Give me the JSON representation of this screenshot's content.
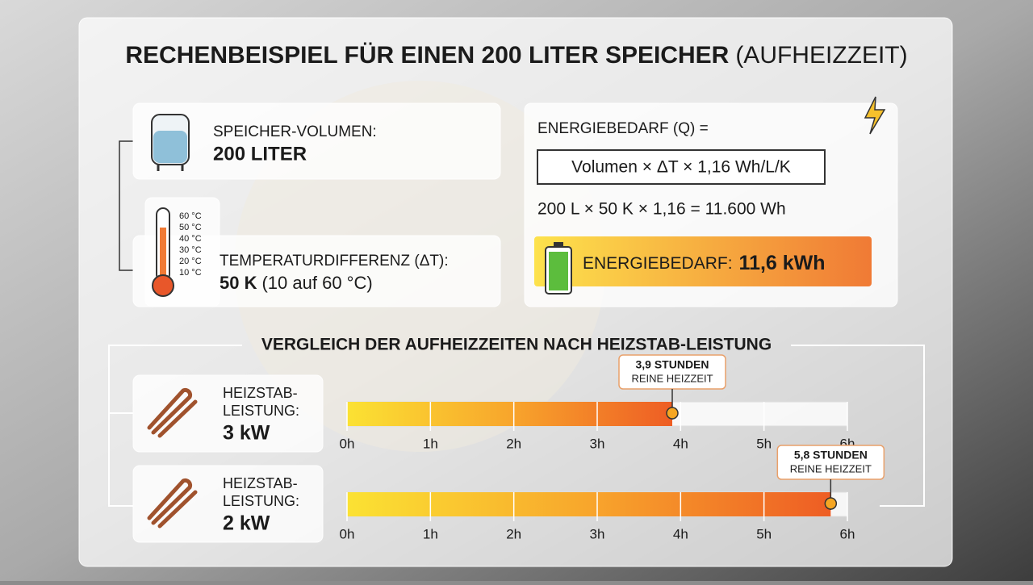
{
  "title_main": "RECHENBEISPIEL FÜR EINEN 200 LITER SPEICHER",
  "title_sub": "(AUFHEIZZEIT)",
  "volume": {
    "label": "SPEICHER-VOLUMEN:",
    "value": "200 LITER"
  },
  "thermometer_ticks": [
    "60 °C",
    "50 °C",
    "40 °C",
    "30 °C",
    "20 °C",
    "10 °C"
  ],
  "temperature": {
    "label": "TEMPERATURDIFFERENZ (ΔT):",
    "value": "50 K",
    "detail": "(10 auf 60 °C)"
  },
  "energy": {
    "heading": "ENERGIEBEDARF (Q) =",
    "formula": "Volumen × ΔT × 1,16 Wh/L/K",
    "calculation": "200 L × 50 K × 1,16 = 11.600 Wh",
    "result_label": "ENERGIEBEDARF:",
    "result_value": "11,6 kWh"
  },
  "comparison": {
    "title": "VERGLEICH DER AUFHEIZZEITEN NACH HEIZSTAB-LEISTUNG",
    "xlim": [
      0,
      6
    ],
    "xticks": [
      {
        "value": 0,
        "label": "0h"
      },
      {
        "value": 1,
        "label": "1h"
      },
      {
        "value": 2,
        "label": "2h"
      },
      {
        "value": 3,
        "label": "3h"
      },
      {
        "value": 4,
        "label": "4h"
      },
      {
        "value": 5,
        "label": "5h"
      },
      {
        "value": 6,
        "label": "6h"
      }
    ],
    "rows": [
      {
        "label_line1": "HEIZSTAB-",
        "label_line2": "LEISTUNG:",
        "power": "3 kW",
        "hours": 3.9,
        "value_label": "3,9 STUNDEN",
        "note": "REINE HEIZZEIT"
      },
      {
        "label_line1": "HEIZSTAB-",
        "label_line2": "LEISTUNG:",
        "power": "2 kW",
        "hours": 5.8,
        "value_label": "5,8 STUNDEN",
        "note": "REINE HEIZZEIT"
      }
    ]
  }
}
